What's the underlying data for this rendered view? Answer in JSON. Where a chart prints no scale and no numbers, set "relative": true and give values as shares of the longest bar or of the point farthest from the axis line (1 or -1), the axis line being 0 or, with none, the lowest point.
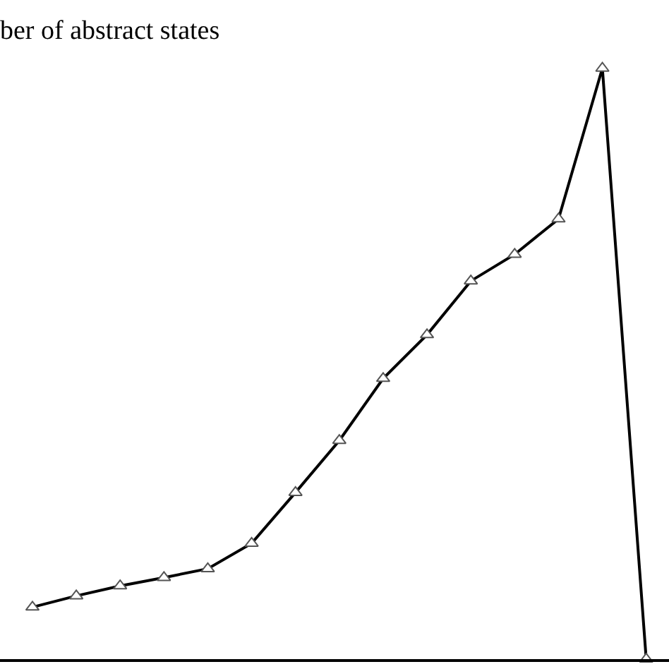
{
  "chart_data": {
    "type": "line",
    "title": "ber of abstract states",
    "relative": true,
    "marker": "triangle",
    "line_style": "solid",
    "categories": [
      null,
      null,
      null,
      null,
      null,
      null,
      null,
      null,
      null,
      null,
      null,
      null,
      null,
      null,
      null
    ],
    "series": [
      {
        "color": "#000000",
        "values": [
          0.088,
          0.107,
          0.124,
          0.138,
          0.153,
          0.196,
          0.282,
          0.37,
          0.475,
          0.549,
          0.64,
          0.685,
          0.745,
          1,
          0
        ]
      }
    ]
  }
}
